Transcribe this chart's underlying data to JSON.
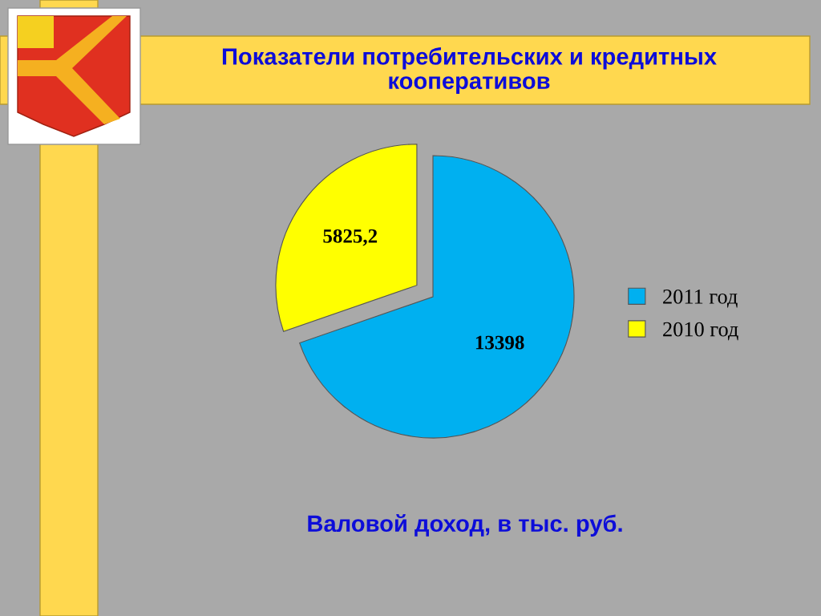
{
  "chart_data": {
    "type": "pie",
    "title": "Показатели потребительских и кредитных\nкооперативов",
    "annotations": [
      "Валовой доход, в тыс. руб."
    ],
    "categories": [
      "2011 год",
      "2010 год"
    ],
    "values": [
      13398,
      5825.2
    ],
    "colors": [
      "#00b0f0",
      "#ffff00"
    ],
    "value_labels": [
      "13398",
      "5825,2"
    ],
    "legend": "right"
  }
}
